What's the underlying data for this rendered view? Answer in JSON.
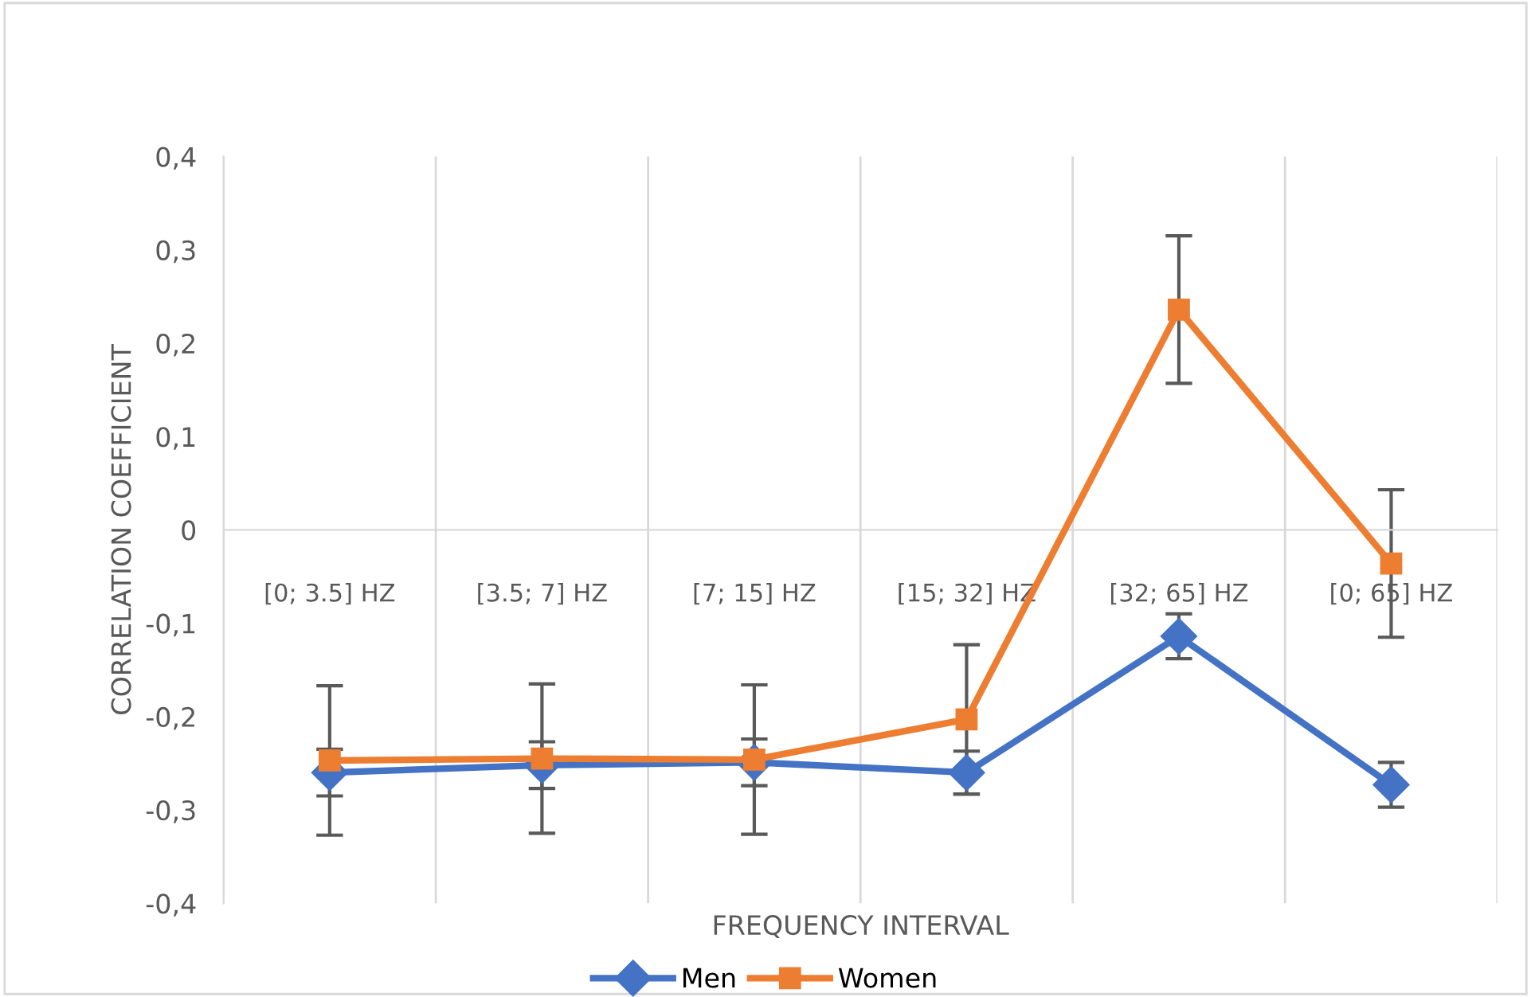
{
  "chart_data": {
    "type": "line",
    "xlabel": "FREQUENCY INTERVAL",
    "ylabel": "CORRELATION COEFFICIENT",
    "categories": [
      "[0; 3.5] HZ",
      "[3.5; 7] HZ",
      "[7; 15] HZ",
      "[15; 32] HZ",
      "[32; 65] HZ",
      "[0; 65] HZ"
    ],
    "series": [
      {
        "name": "Men",
        "color": "#4472c4",
        "marker": "diamond",
        "values": [
          -0.26,
          -0.252,
          -0.249,
          -0.26,
          -0.114,
          -0.273
        ],
        "errors": [
          0.025,
          0.025,
          0.025,
          0.023,
          0.024,
          0.024
        ]
      },
      {
        "name": "Women",
        "color": "#ed7d31",
        "marker": "square",
        "values": [
          -0.247,
          -0.245,
          -0.246,
          -0.203,
          0.236,
          -0.036
        ],
        "errors": [
          0.08,
          0.08,
          0.08,
          0.08,
          0.079,
          0.079
        ]
      }
    ],
    "ylim": [
      -0.4,
      0.4
    ],
    "yticks": [
      {
        "value": -0.4,
        "label": "-0,4"
      },
      {
        "value": -0.3,
        "label": "-0,3"
      },
      {
        "value": -0.2,
        "label": "-0,2"
      },
      {
        "value": -0.1,
        "label": "-0,1"
      },
      {
        "value": 0,
        "label": "0"
      },
      {
        "value": 0.1,
        "label": "0,1"
      },
      {
        "value": 0.2,
        "label": "0,2"
      },
      {
        "value": 0.3,
        "label": "0,3"
      },
      {
        "value": 0.4,
        "label": "0,4"
      }
    ],
    "grid": "x",
    "legend": "bottom",
    "line_style": "solid"
  }
}
